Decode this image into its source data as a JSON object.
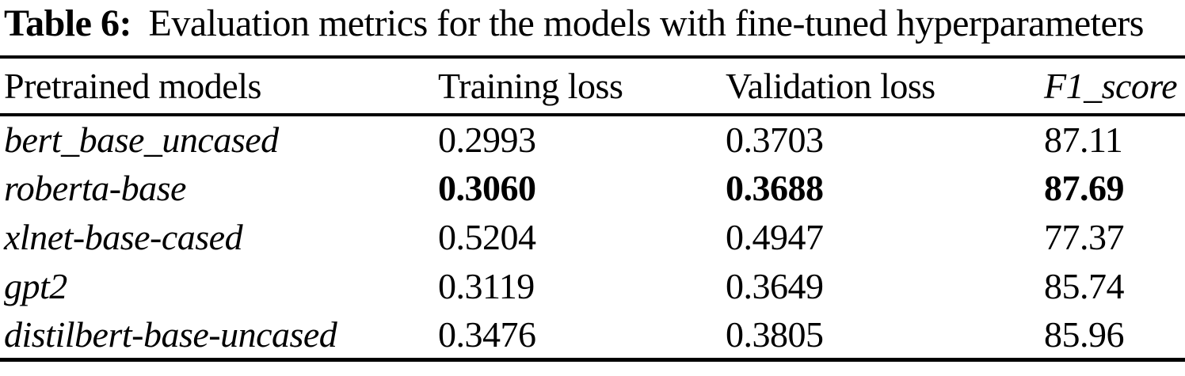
{
  "caption": {
    "label": "Table 6:",
    "text": "Evaluation metrics for the models with fine-tuned hyperparameters"
  },
  "table": {
    "columns": [
      "Pretrained models",
      "Training loss",
      "Validation loss",
      "F1_score"
    ],
    "rows": [
      {
        "model": "bert_base_uncased",
        "training_loss": "0.2993",
        "validation_loss": "0.3703",
        "f1_score": "87.11",
        "bold": false
      },
      {
        "model": "roberta-base",
        "training_loss": "0.3060",
        "validation_loss": "0.3688",
        "f1_score": "87.69",
        "bold": true
      },
      {
        "model": "xlnet-base-cased",
        "training_loss": "0.5204",
        "validation_loss": "0.4947",
        "f1_score": "77.37",
        "bold": false
      },
      {
        "model": "gpt2",
        "training_loss": "0.3119",
        "validation_loss": "0.3649",
        "f1_score": "85.74",
        "bold": false
      },
      {
        "model": "distilbert-base-uncased",
        "training_loss": "0.3476",
        "validation_loss": "0.3805",
        "f1_score": "85.96",
        "bold": false
      }
    ]
  },
  "chart_data": {
    "type": "table",
    "title": "Table 6: Evaluation metrics for the models with fine-tuned hyperparameters",
    "columns": [
      "Pretrained models",
      "Training loss",
      "Validation loss",
      "F1_score"
    ],
    "rows": [
      [
        "bert_base_uncased",
        0.2993,
        0.3703,
        87.11
      ],
      [
        "roberta-base",
        0.306,
        0.3688,
        87.69
      ],
      [
        "xlnet-base-cased",
        0.5204,
        0.4947,
        77.37
      ],
      [
        "gpt2",
        0.3119,
        0.3649,
        85.74
      ],
      [
        "distilbert-base-uncased",
        0.3476,
        0.3805,
        85.96
      ]
    ],
    "highlighted_row": "roberta-base"
  },
  "colors": {
    "text": "#000000",
    "background": "#ffffff",
    "rule": "#000000"
  }
}
